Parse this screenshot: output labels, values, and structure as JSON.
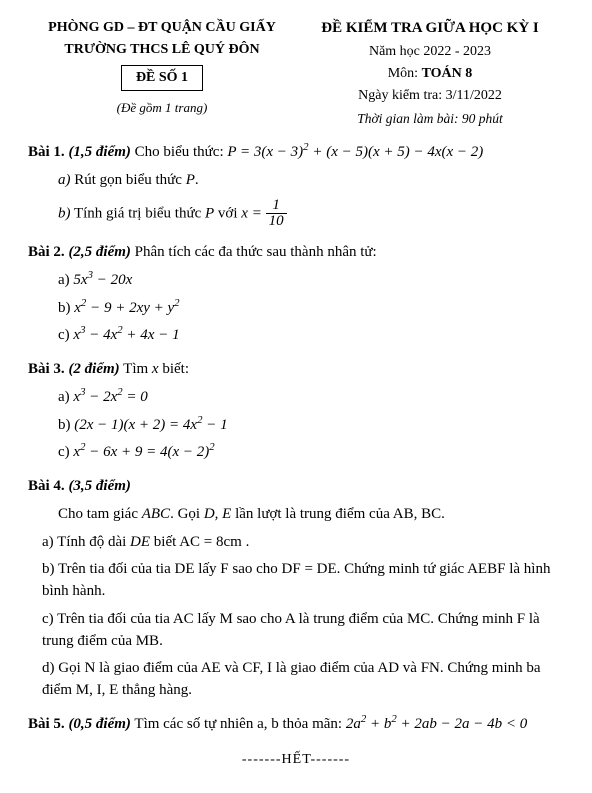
{
  "header": {
    "dept": "PHÒNG GD – ĐT QUẬN CẦU GIẤY",
    "school": "TRƯỜNG THCS LÊ QUÝ ĐÔN",
    "exam_no": "ĐỀ SỐ 1",
    "pages": "(Đề gồm 1 trang)",
    "exam_title": "ĐỀ KIỂM TRA GIỮA HỌC KỲ I",
    "year": "Năm học 2022 - 2023",
    "subject_prefix": "Môn: ",
    "subject": "TOÁN 8",
    "date": "Ngày kiểm tra: 3/11/2022",
    "duration": "Thời gian làm bài: 90 phút"
  },
  "b1": {
    "label": "Bài 1.",
    "points": "(1,5 điểm)",
    "text": " Cho biểu thức: ",
    "expr_pre": "P = 3(x − 3)",
    "expr_mid": " + (x − 5)(x + 5) − 4x(x − 2)",
    "a_lbl": "a)",
    "a_text": " Rút gọn biểu thức ",
    "a_var": "P",
    "a_end": ".",
    "b_lbl": "b)",
    "b_text": " Tính giá trị biểu thức ",
    "b_var": "P",
    "b_mid": " với ",
    "b_eq": "x = ",
    "b_num": "1",
    "b_den": "10"
  },
  "b2": {
    "label": "Bài 2.",
    "points": "(2,5 điểm)",
    "text": " Phân tích các đa thức sau  thành nhân tử:",
    "a_lbl": "a)",
    "a_pre": "5x",
    "a_post": " − 20x",
    "b_lbl": "b)",
    "b_p1": "x",
    "b_p2": " − 9 + 2xy + y",
    "c_lbl": "c)",
    "c_p1": "x",
    "c_p2": " − 4x",
    "c_p3": " + 4x − 1"
  },
  "b3": {
    "label": "Bài 3.",
    "points": "(2 điểm)",
    "text": " Tìm ",
    "var": "x",
    "text2": " biết:",
    "a_lbl": "a)",
    "a_p1": "x",
    "a_p2": " − 2x",
    "a_p3": " = 0",
    "b_lbl": "b)",
    "b_p1": "(2x − 1)(x + 2) = 4x",
    "b_p2": " − 1",
    "c_lbl": "c)",
    "c_p1": "x",
    "c_p2": " − 6x + 9 = 4(x − 2)"
  },
  "b4": {
    "label": "Bài 4.",
    "points": "(3,5 điểm)",
    "l1a": "Cho tam giác ",
    "l1b": "ABC",
    "l1c": ". Gọi ",
    "l1d": "D, E",
    "l1e": " lần lượt là trung điểm của AB, BC.",
    "a_lbl": "a)",
    "a1": " Tính độ dài ",
    "a2": "DE",
    "a3": " biết AC = 8cm .",
    "b_lbl": "b)",
    "b_text": " Trên tia đối của tia DE lấy F sao cho DF = DE. Chứng minh tứ giác AEBF là hình bình hành.",
    "c_lbl": "c)",
    "c_text": " Trên tia đối của tia AC lấy M sao cho A là trung điểm của MC. Chứng minh F là trung điểm của MB.",
    "d_lbl": "d)",
    "d_text": " Gọi N là giao điểm của AE và CF, I là giao điểm của AD và FN. Chứng minh ba điểm  M, I, E thẳng hàng."
  },
  "b5": {
    "label": "Bài 5.",
    "points": "(0,5 điểm)",
    "text": " Tìm các số tự nhiên  a, b thỏa mãn: ",
    "e1": "2a",
    "e2": " + b",
    "e3": " + 2ab − 2a − 4b < 0"
  },
  "end": "-------HẾT-------"
}
